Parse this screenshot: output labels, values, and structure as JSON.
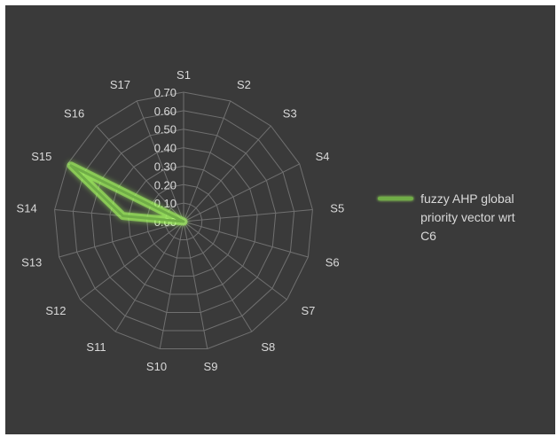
{
  "chart_data": {
    "type": "radar",
    "categories": [
      "S1",
      "S2",
      "S3",
      "S4",
      "S5",
      "S6",
      "S7",
      "S8",
      "S9",
      "S10",
      "S11",
      "S12",
      "S13",
      "S14",
      "S15",
      "S16",
      "S17"
    ],
    "series": [
      {
        "name": "fuzzy AHP global priority vector wrt C6",
        "values": [
          0.0,
          0.0,
          0.0,
          0.0,
          0.0,
          0.0,
          0.0,
          0.0,
          0.0,
          0.0,
          0.0,
          0.0,
          0.0,
          0.33,
          0.68,
          0.0,
          0.0
        ]
      }
    ],
    "tick_labels": [
      "0.00",
      "0.10",
      "0.20",
      "0.30",
      "0.40",
      "0.50",
      "0.60",
      "0.70"
    ],
    "rlim": [
      0,
      0.7
    ],
    "grid": true,
    "legend_position": "right",
    "colors": {
      "background": "#3a3a3a",
      "grid": "#707070",
      "series": "#70ad47",
      "glow": "#a8ff60",
      "text": "#d9d9d9"
    }
  },
  "legend": {
    "label": "fuzzy AHP global priority vector wrt C6"
  }
}
